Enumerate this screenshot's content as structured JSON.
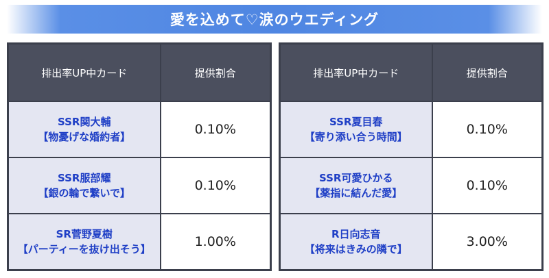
{
  "title": "愛を込めて♡涙のウエディング",
  "headers": {
    "card": "排出率UP中カード",
    "rate": "提供割合"
  },
  "left_table": [
    {
      "card_name": "SSR関大輔",
      "card_subtitle": "【物憂げな婚約者】",
      "rate": "0.10%"
    },
    {
      "card_name": "SSR服部耀",
      "card_subtitle": "【銀の輪で繋いで】",
      "rate": "0.10%"
    },
    {
      "card_name": "SR菅野夏樹",
      "card_subtitle": "【パーティーを抜け出そう】",
      "rate": "1.00%"
    }
  ],
  "right_table": [
    {
      "card_name": "SSR夏目春",
      "card_subtitle": "【寄り添い合う時間】",
      "rate": "0.10%"
    },
    {
      "card_name": "SSR可愛ひかる",
      "card_subtitle": "【薬指に結んだ愛】",
      "rate": "0.10%"
    },
    {
      "card_name": "R日向志音",
      "card_subtitle": "【将来はきみの隣で】",
      "rate": "3.00%"
    }
  ],
  "colors": {
    "banner": "#4f86e2",
    "header_bg": "#4b4f5e",
    "card_cell_bg": "#e4e6f2",
    "card_text": "#1f3fc6"
  }
}
